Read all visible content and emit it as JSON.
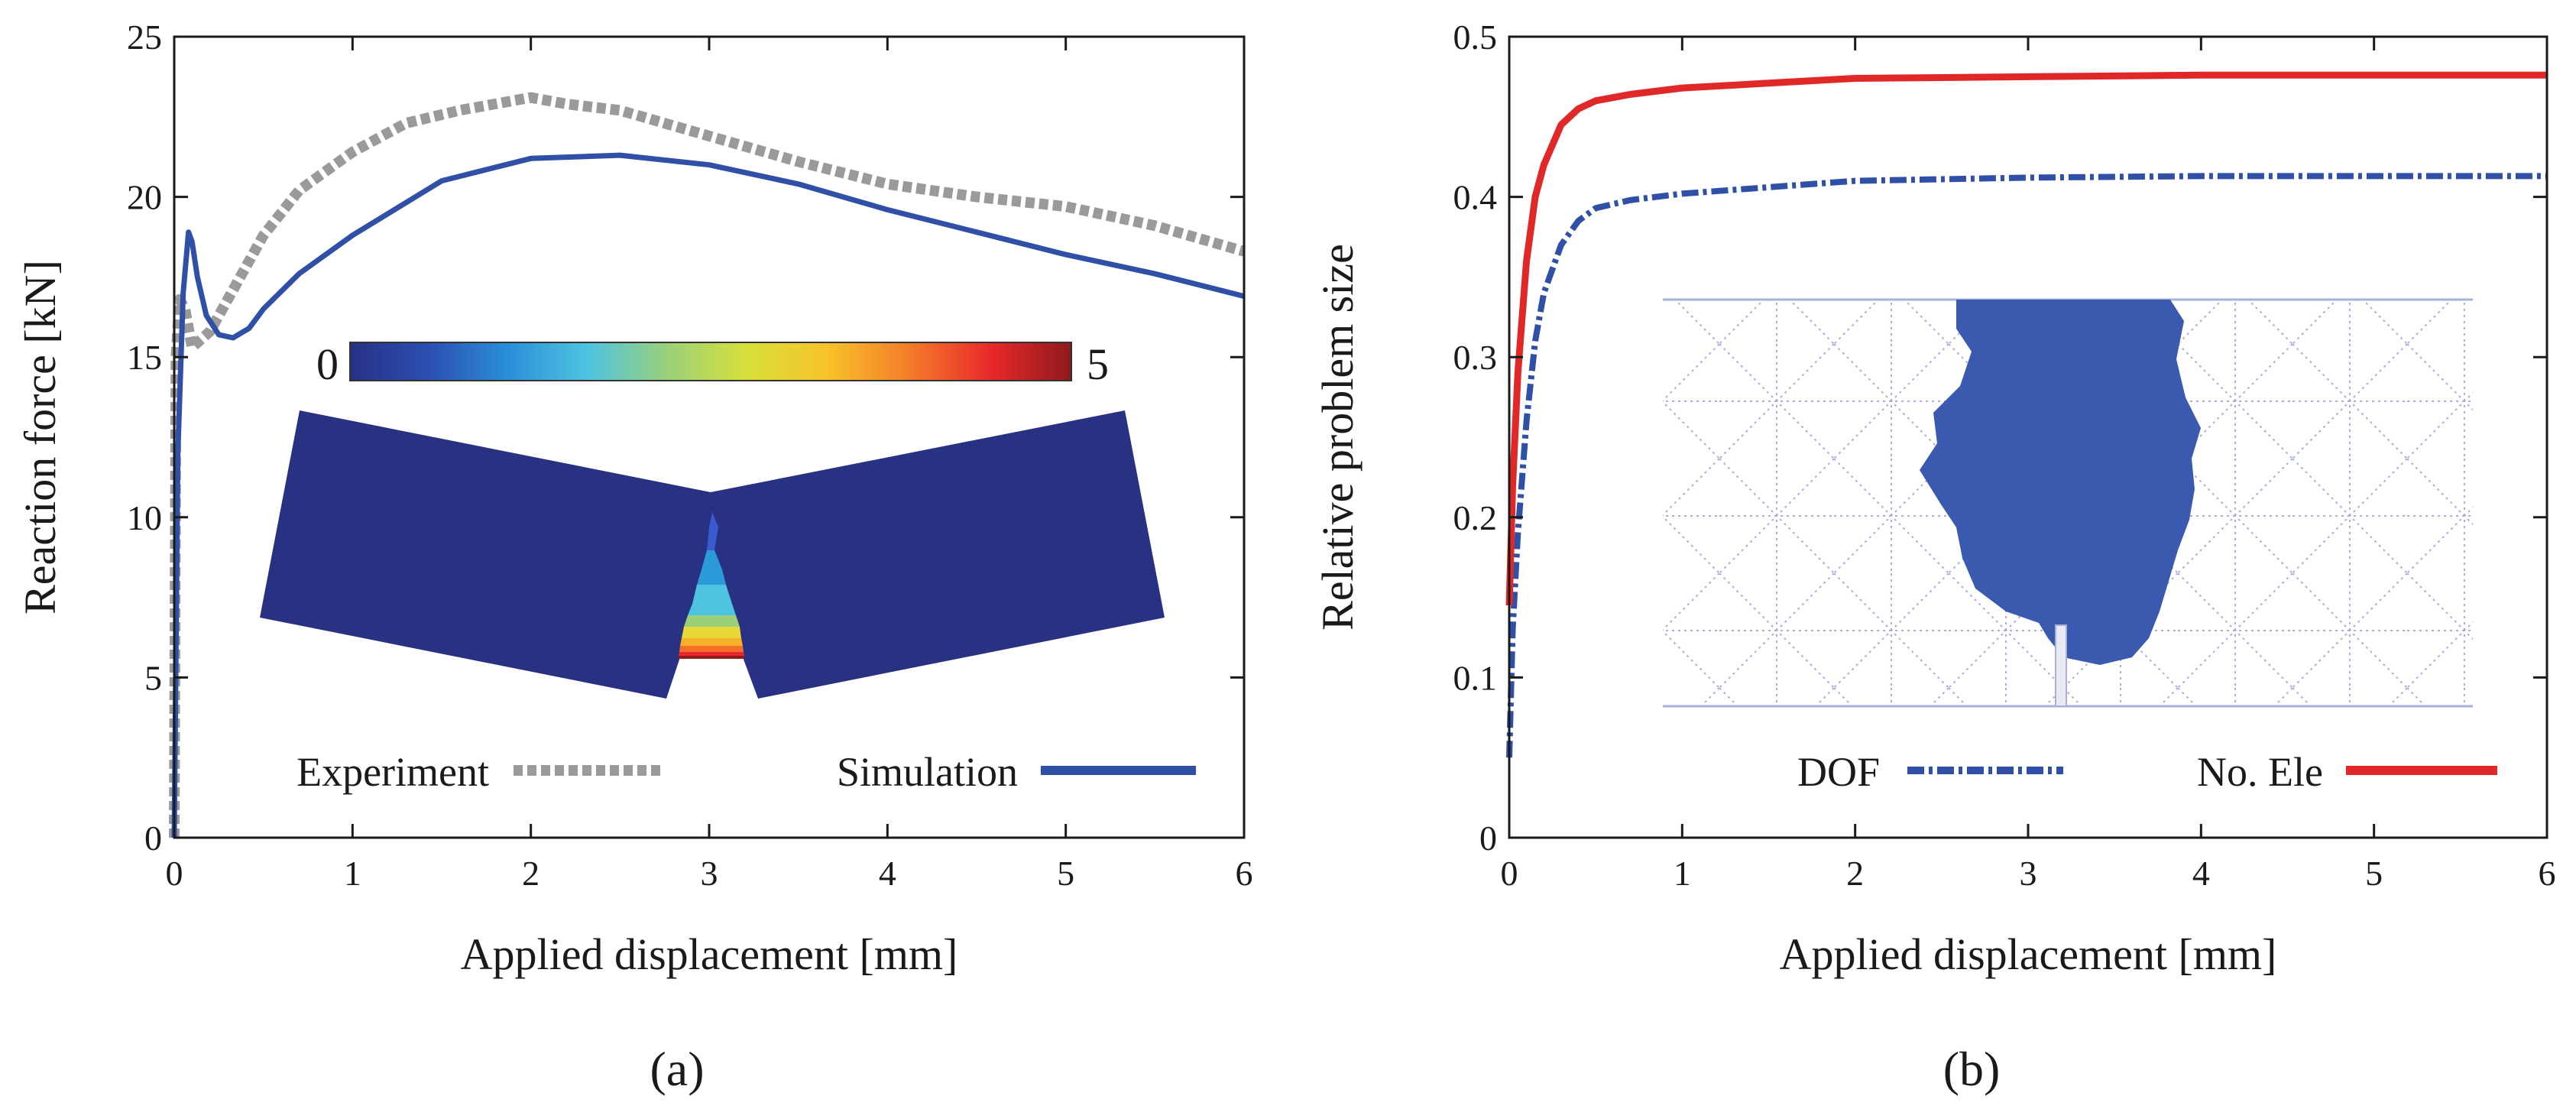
{
  "chart_data": [
    {
      "type": "line",
      "panel_label": "(a)",
      "xlabel": "Applied displacement [mm]",
      "ylabel": "Reaction force [kN]",
      "xlim": [
        0,
        6
      ],
      "ylim": [
        0,
        25
      ],
      "xticks": [
        "0",
        "1",
        "2",
        "3",
        "4",
        "5",
        "6"
      ],
      "yticks": [
        "0",
        "5",
        "10",
        "15",
        "20",
        "25"
      ],
      "colors": {
        "experiment": "#9a9a9a",
        "simulation": "#3050a8"
      },
      "series": [
        {
          "name": "Experiment",
          "style": "dashed",
          "x": [
            0,
            0.01,
            0.03,
            0.06,
            0.1,
            0.2,
            0.35,
            0.5,
            0.7,
            1.0,
            1.3,
            1.6,
            1.9,
            2.0,
            2.2,
            2.5,
            3.0,
            3.5,
            4.0,
            4.5,
            5.0,
            5.5,
            6.0
          ],
          "y": [
            0,
            15.0,
            16.8,
            16.5,
            15.3,
            15.8,
            17.3,
            18.8,
            20.2,
            21.4,
            22.3,
            22.7,
            23.0,
            23.1,
            22.9,
            22.7,
            21.9,
            21.1,
            20.4,
            20.0,
            19.7,
            19.1,
            18.3
          ]
        },
        {
          "name": "Simulation",
          "style": "solid",
          "x": [
            0,
            0.02,
            0.05,
            0.08,
            0.1,
            0.13,
            0.18,
            0.25,
            0.33,
            0.42,
            0.5,
            0.7,
            1.0,
            1.5,
            2.0,
            2.5,
            3.0,
            3.5,
            4.0,
            4.5,
            5.0,
            5.5,
            6.0
          ],
          "y": [
            0,
            12.0,
            17.0,
            18.9,
            18.6,
            17.5,
            16.3,
            15.7,
            15.6,
            15.9,
            16.5,
            17.6,
            18.8,
            20.5,
            21.2,
            21.3,
            21.0,
            20.4,
            19.6,
            18.9,
            18.2,
            17.6,
            16.9
          ]
        }
      ],
      "inset": {
        "colorbar_min": "0",
        "colorbar_max": "5",
        "colorbar_colors": [
          "#283182",
          "#2b4fb3",
          "#2b8fd8",
          "#4ec4e0",
          "#9ad07a",
          "#d7e03a",
          "#f7c32a",
          "#f4802a",
          "#e8282a",
          "#8e1a1c"
        ]
      }
    },
    {
      "type": "line",
      "panel_label": "(b)",
      "xlabel": "Applied displacement [mm]",
      "ylabel": "Relative problem size",
      "xlim": [
        0,
        6
      ],
      "ylim": [
        0,
        0.5
      ],
      "xticks": [
        "0",
        "1",
        "2",
        "3",
        "4",
        "5",
        "6"
      ],
      "yticks": [
        "0",
        "0.1",
        "0.2",
        "0.3",
        "0.4",
        "0.5"
      ],
      "colors": {
        "dof": "#3050a8",
        "no_ele": "#e02828"
      },
      "series": [
        {
          "name": "DOF",
          "style": "dashdot",
          "x": [
            0,
            0.02,
            0.05,
            0.1,
            0.15,
            0.2,
            0.3,
            0.4,
            0.5,
            0.7,
            1.0,
            1.5,
            2.0,
            3.0,
            4.0,
            5.0,
            6.0
          ],
          "y": [
            0.05,
            0.13,
            0.19,
            0.26,
            0.31,
            0.34,
            0.37,
            0.385,
            0.393,
            0.398,
            0.402,
            0.406,
            0.41,
            0.412,
            0.413,
            0.413,
            0.413
          ]
        },
        {
          "name": "No. Ele",
          "style": "solid",
          "x": [
            0,
            0.02,
            0.05,
            0.1,
            0.15,
            0.2,
            0.3,
            0.4,
            0.5,
            0.7,
            1.0,
            1.5,
            2.0,
            3.0,
            4.0,
            5.0,
            6.0
          ],
          "y": [
            0.145,
            0.22,
            0.29,
            0.36,
            0.4,
            0.42,
            0.445,
            0.455,
            0.46,
            0.464,
            0.468,
            0.471,
            0.474,
            0.475,
            0.476,
            0.476,
            0.476
          ]
        }
      ]
    }
  ]
}
